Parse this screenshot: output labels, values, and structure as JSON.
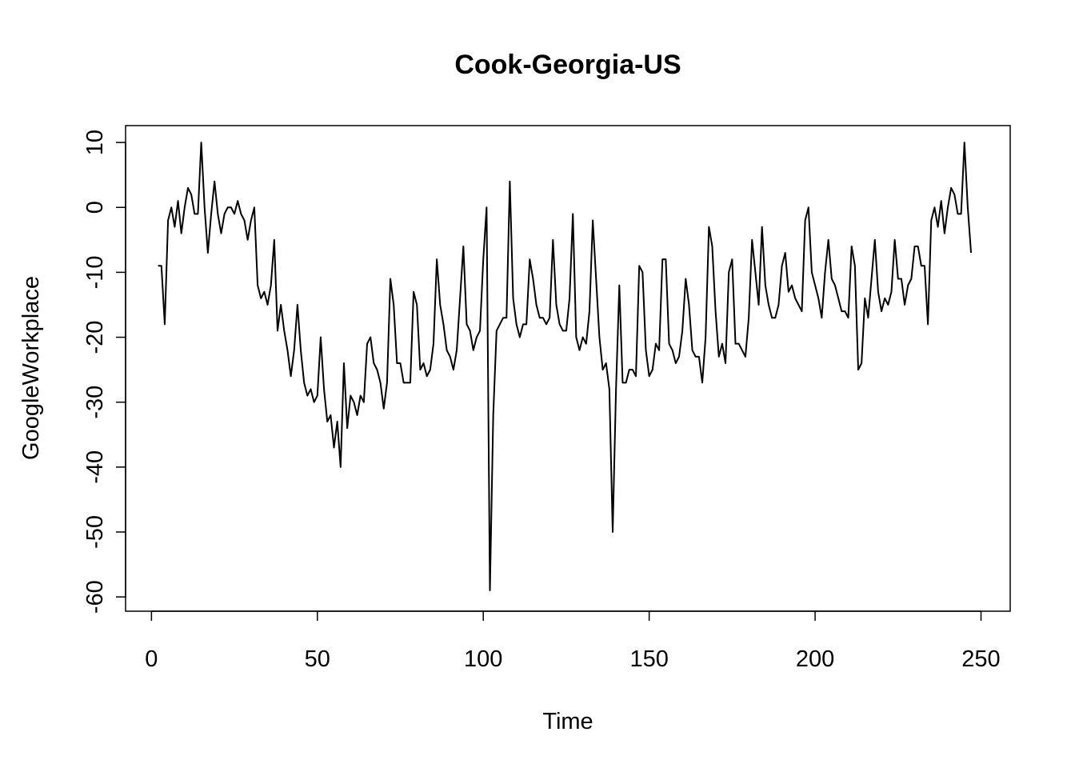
{
  "chart_data": {
    "type": "line",
    "title": "Cook-Georgia-US",
    "xlabel": "Time",
    "ylabel": "GoogleWorkplace",
    "xlim": [
      -7.8,
      258.8
    ],
    "ylim": [
      -62.2,
      12.6
    ],
    "xticks": [
      0,
      50,
      100,
      150,
      200,
      250
    ],
    "yticks": [
      -60,
      -50,
      -40,
      -30,
      -20,
      -10,
      0,
      10
    ],
    "grid": false,
    "legend": "none",
    "line_color": "#000000",
    "x_start": 2,
    "series": [
      {
        "values": [
          -9,
          -9,
          -18,
          -2,
          0,
          -3,
          1,
          -4,
          0,
          3,
          2,
          -1,
          -1,
          10,
          0,
          -7,
          -1,
          4,
          -1,
          -4,
          -1,
          0,
          0,
          -1,
          1,
          -1,
          -2,
          -5,
          -2,
          0,
          -12,
          -14,
          -13,
          -15,
          -12,
          -5,
          -19,
          -15,
          -19,
          -22,
          -26,
          -22,
          -15,
          -22,
          -27,
          -29,
          -28,
          -30,
          -29,
          -20,
          -28,
          -33,
          -32,
          -37,
          -33,
          -40,
          -24,
          -34,
          -29,
          -30,
          -32,
          -29,
          -30,
          -21,
          -20,
          -24,
          -25,
          -27,
          -31,
          -27,
          -11,
          -15,
          -24,
          -24,
          -27,
          -27,
          -27,
          -13,
          -15,
          -25,
          -24,
          -26,
          -25,
          -21,
          -8,
          -15,
          -18,
          -22,
          -23,
          -25,
          -22,
          -14,
          -6,
          -18,
          -19,
          -22,
          -20,
          -19,
          -8,
          0,
          -59,
          -32,
          -19,
          -18,
          -17,
          -17,
          4,
          -14,
          -18,
          -20,
          -18,
          -18,
          -8,
          -11,
          -15,
          -17,
          -17,
          -18,
          -17,
          -5,
          -15,
          -18,
          -19,
          -19,
          -14,
          -1,
          -20,
          -22,
          -20,
          -21,
          -16,
          -2,
          -11,
          -20,
          -25,
          -24,
          -28,
          -50,
          -28,
          -12,
          -27,
          -27,
          -25,
          -25,
          -26,
          -9,
          -10,
          -22,
          -26,
          -25,
          -21,
          -22,
          -8,
          -8,
          -21,
          -22,
          -24,
          -23,
          -19,
          -11,
          -15,
          -22,
          -23,
          -23,
          -27,
          -20,
          -3,
          -6,
          -16,
          -23,
          -21,
          -24,
          -10,
          -8,
          -21,
          -21,
          -22,
          -23,
          -17,
          -5,
          -10,
          -15,
          -3,
          -12,
          -15,
          -17,
          -17,
          -15,
          -9,
          -7,
          -13,
          -12,
          -14,
          -15,
          -16,
          -2,
          0,
          -10,
          -12,
          -14,
          -17,
          -10,
          -5,
          -11,
          -12,
          -14,
          -16,
          -16,
          -17,
          -6,
          -9,
          -25,
          -24,
          -14,
          -17,
          -11,
          -5,
          -13,
          -16,
          -14,
          -15,
          -13,
          -5,
          -11,
          -11,
          -15,
          -12,
          -11,
          -6,
          -6,
          -9,
          -9,
          -18,
          -2,
          0,
          -3,
          1,
          -4,
          0,
          3,
          2,
          -1,
          -1,
          10,
          0,
          -7
        ]
      }
    ]
  }
}
